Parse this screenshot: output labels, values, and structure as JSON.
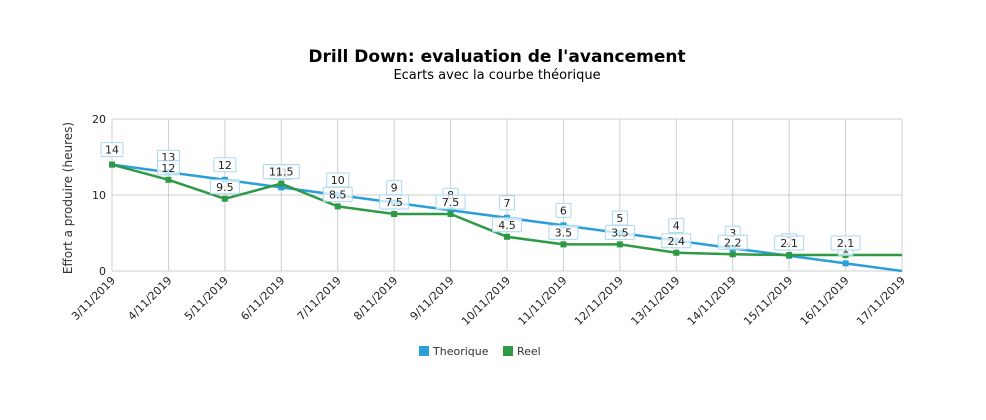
{
  "chart_data": {
    "type": "line",
    "title": "Drill Down: evaluation de l'avancement",
    "subtitle": "Ecarts avec la courbe théorique",
    "ylabel": "Effort a produire (heures)",
    "xlabel": "",
    "ylim": [
      0,
      20
    ],
    "yticks": [
      0,
      10,
      20
    ],
    "grid": true,
    "legend_position": "bottom-center",
    "categories": [
      "3/11/2019",
      "4/11/2019",
      "5/11/2019",
      "6/11/2019",
      "7/11/2019",
      "8/11/2019",
      "9/11/2019",
      "10/11/2019",
      "11/11/2019",
      "12/11/2019",
      "13/11/2019",
      "14/11/2019",
      "15/11/2019",
      "16/11/2019",
      "17/11/2019"
    ],
    "series": [
      {
        "name": "Theorique",
        "color": "#2b9fd8",
        "values": [
          14,
          13,
          12,
          11,
          10,
          9,
          8,
          7,
          6,
          5,
          4,
          3,
          2,
          1,
          0
        ],
        "labels": [
          "14",
          "13",
          "12",
          "11",
          "10",
          "9",
          "8",
          "7",
          "6",
          "5",
          "4",
          "3",
          "2",
          "1",
          ""
        ]
      },
      {
        "name": "Reel",
        "color": "#2e9a45",
        "values": [
          14,
          12,
          9.5,
          11.5,
          8.5,
          7.5,
          7.5,
          4.5,
          3.5,
          3.5,
          2.4,
          2.2,
          2.1,
          2.1,
          2.1
        ],
        "labels": [
          "",
          "12",
          "9.5",
          "11.5",
          "8.5",
          "7.5",
          "7.5",
          "4.5",
          "3.5",
          "3.5",
          "2.4",
          "2.2",
          "2.1",
          "2.1",
          ""
        ]
      }
    ]
  }
}
